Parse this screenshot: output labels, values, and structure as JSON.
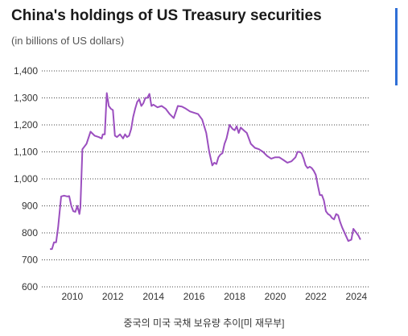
{
  "chart_data": {
    "type": "line",
    "title": "China's holdings of US Treasury securities",
    "subtitle": "(in billions of US dollars)",
    "xlabel": "",
    "ylabel": "",
    "ylim": [
      600,
      1400
    ],
    "xlim": [
      2008.5,
      2024.6
    ],
    "yticks": [
      "600",
      "700",
      "800",
      "900",
      "1,000",
      "1,100",
      "1,200",
      "1,300",
      "1,400"
    ],
    "ytick_values": [
      600,
      700,
      800,
      900,
      1000,
      1100,
      1200,
      1300,
      1400
    ],
    "xticks": [
      "2010",
      "2012",
      "2014",
      "2016",
      "2018",
      "2020",
      "2022",
      "2024"
    ],
    "xtick_values": [
      2010,
      2012,
      2014,
      2016,
      2018,
      2020,
      2022,
      2024
    ],
    "grid": "horizontal dotted",
    "line_color": "#9b4fbf",
    "series": [
      {
        "x": [
          2008.9,
          2009.0,
          2009.1,
          2009.2,
          2009.3,
          2009.45,
          2009.6,
          2009.75,
          2009.85,
          2009.95,
          2010.05,
          2010.15,
          2010.25,
          2010.35,
          2010.4,
          2010.5,
          2010.7,
          2010.9,
          2011.1,
          2011.3,
          2011.45,
          2011.5,
          2011.6,
          2011.7,
          2011.8,
          2011.9,
          2012.0,
          2012.1,
          2012.2,
          2012.35,
          2012.5,
          2012.6,
          2012.7,
          2012.8,
          2012.9,
          2013.0,
          2013.1,
          2013.2,
          2013.3,
          2013.4,
          2013.5,
          2013.6,
          2013.7,
          2013.8,
          2013.9,
          2014.0,
          2014.2,
          2014.4,
          2014.6,
          2014.8,
          2015.0,
          2015.2,
          2015.4,
          2015.6,
          2015.8,
          2016.0,
          2016.2,
          2016.4,
          2016.6,
          2016.75,
          2016.9,
          2017.0,
          2017.1,
          2017.2,
          2017.3,
          2017.4,
          2017.5,
          2017.6,
          2017.75,
          2017.9,
          2018.0,
          2018.1,
          2018.2,
          2018.3,
          2018.45,
          2018.6,
          2018.8,
          2019.0,
          2019.2,
          2019.4,
          2019.6,
          2019.8,
          2020.0,
          2020.2,
          2020.4,
          2020.6,
          2020.8,
          2021.0,
          2021.1,
          2021.2,
          2021.3,
          2021.4,
          2021.5,
          2021.6,
          2021.7,
          2021.8,
          2021.9,
          2022.0,
          2022.1,
          2022.2,
          2022.3,
          2022.4,
          2022.5,
          2022.6,
          2022.7,
          2022.8,
          2022.9,
          2023.0,
          2023.1,
          2023.2,
          2023.3,
          2023.45,
          2023.6,
          2023.75,
          2023.85,
          2024.0,
          2024.1,
          2024.2
        ],
        "y": [
          740,
          740,
          765,
          765,
          820,
          935,
          938,
          935,
          936,
          900,
          880,
          878,
          900,
          870,
          895,
          1110,
          1130,
          1175,
          1160,
          1155,
          1150,
          1165,
          1165,
          1318,
          1270,
          1260,
          1255,
          1160,
          1155,
          1165,
          1150,
          1165,
          1155,
          1160,
          1185,
          1230,
          1260,
          1285,
          1295,
          1270,
          1280,
          1300,
          1300,
          1315,
          1270,
          1275,
          1265,
          1270,
          1260,
          1240,
          1225,
          1270,
          1268,
          1260,
          1250,
          1245,
          1240,
          1220,
          1170,
          1100,
          1050,
          1060,
          1055,
          1080,
          1090,
          1095,
          1130,
          1150,
          1200,
          1185,
          1180,
          1195,
          1170,
          1190,
          1180,
          1170,
          1130,
          1115,
          1110,
          1100,
          1085,
          1075,
          1080,
          1080,
          1070,
          1060,
          1065,
          1080,
          1100,
          1100,
          1095,
          1075,
          1050,
          1040,
          1045,
          1040,
          1030,
          1015,
          975,
          940,
          940,
          920,
          880,
          870,
          865,
          855,
          850,
          870,
          865,
          840,
          820,
          795,
          770,
          775,
          815,
          800,
          790,
          775
        ]
      }
    ]
  },
  "caption": "중국의 미국 국채 보유량 추이[미 재무부]"
}
